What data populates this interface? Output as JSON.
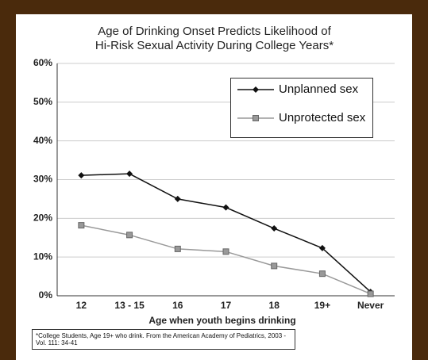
{
  "chart_data": {
    "type": "line",
    "title": "Age of Drinking Onset Predicts Likelihood of",
    "subtitle": "Hi-Risk Sexual Activity During College Years*",
    "x_label": "Age when youth begins drinking",
    "footnote": "*College Students, Age 19+ who drink. From the American Academy of Pediatrics, 2003 - Vol. 111: 34-41",
    "categories": [
      "12",
      "13 - 15",
      "16",
      "17",
      "18",
      "19+",
      "Never"
    ],
    "series": [
      {
        "name": "Unplanned sex",
        "color": "#111111",
        "marker": "diamond",
        "values": [
          31.1,
          31.5,
          25,
          22.8,
          17.4,
          12.3,
          1
        ]
      },
      {
        "name": "Unprotected sex",
        "color": "#999999",
        "marker": "square",
        "values": [
          18.2,
          15.7,
          12.1,
          11.4,
          7.7,
          5.7,
          0.5
        ]
      }
    ],
    "ylim": [
      0,
      60
    ],
    "yticks": [
      {
        "value": 0,
        "label": "0%"
      },
      {
        "value": 10,
        "label": "10%"
      },
      {
        "value": 20,
        "label": "20%"
      },
      {
        "value": 30,
        "label": "30%"
      },
      {
        "value": 40,
        "label": "40%"
      },
      {
        "value": 50,
        "label": "50%"
      },
      {
        "value": 60,
        "label": "60%"
      }
    ],
    "grid": true
  }
}
